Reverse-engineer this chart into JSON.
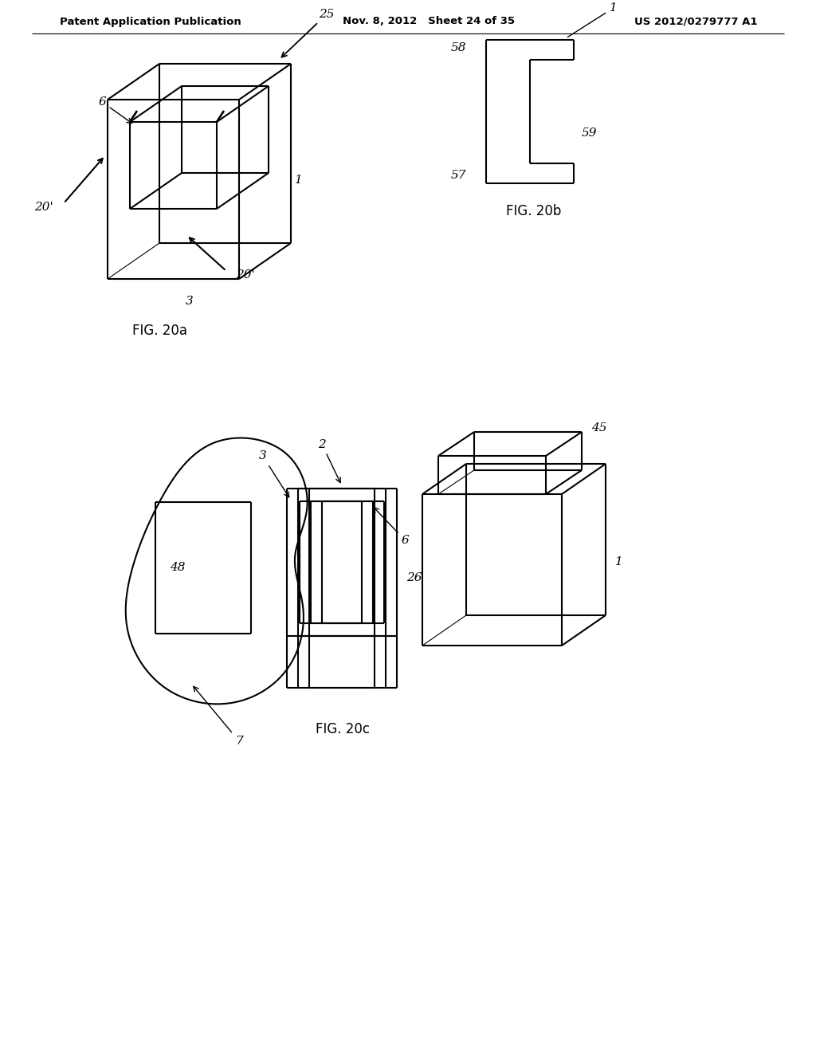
{
  "bg_color": "#ffffff",
  "header_left": "Patent Application Publication",
  "header_mid": "Nov. 8, 2012   Sheet 24 of 35",
  "header_right": "US 2012/0279777 A1",
  "fig20a_caption": "FIG. 20a",
  "fig20b_caption": "FIG. 20b",
  "fig20c_caption": "FIG. 20c",
  "line_color": "#000000",
  "line_width": 1.5,
  "label_fontsize": 11,
  "caption_fontsize": 12,
  "header_fontsize": 10
}
